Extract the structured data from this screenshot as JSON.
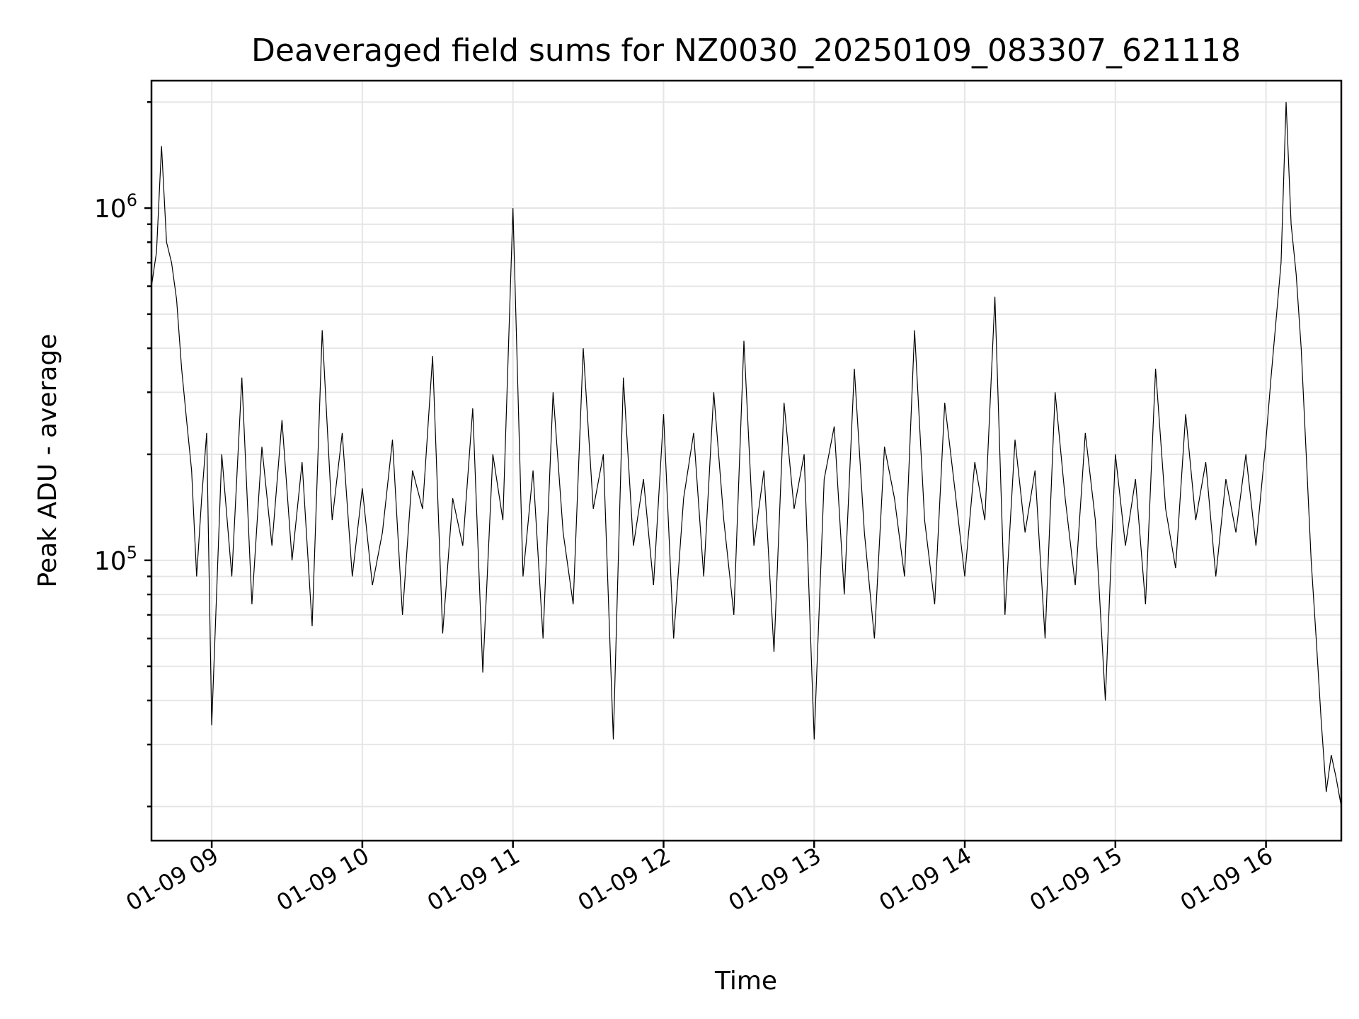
{
  "chart_data": {
    "type": "line",
    "title": "Deaveraged field sums for NZ0030_20250109_083307_621118",
    "xlabel": "Time",
    "ylabel": "Peak ADU - average",
    "yscale": "log",
    "ylim": [
      16000,
      2300000
    ],
    "xlim": [
      "2025-01-09 08:36",
      "2025-01-09 16:30"
    ],
    "grid": true,
    "xticks": [
      {
        "t": "2025-01-09 09:00",
        "label": "01-09 09"
      },
      {
        "t": "2025-01-09 10:00",
        "label": "01-09 10"
      },
      {
        "t": "2025-01-09 11:00",
        "label": "01-09 11"
      },
      {
        "t": "2025-01-09 12:00",
        "label": "01-09 12"
      },
      {
        "t": "2025-01-09 13:00",
        "label": "01-09 13"
      },
      {
        "t": "2025-01-09 14:00",
        "label": "01-09 14"
      },
      {
        "t": "2025-01-09 15:00",
        "label": "01-09 15"
      },
      {
        "t": "2025-01-09 16:00",
        "label": "01-09 16"
      }
    ],
    "yticks": [
      {
        "value": 100000,
        "base": "10",
        "exp": "5"
      },
      {
        "value": 1000000,
        "base": "10",
        "exp": "6"
      }
    ],
    "line_color": "#000000",
    "series": [
      {
        "x": [
          "2025-01-09 08:36",
          "2025-01-09 08:38",
          "2025-01-09 08:40",
          "2025-01-09 08:42",
          "2025-01-09 08:44",
          "2025-01-09 08:46",
          "2025-01-09 08:48",
          "2025-01-09 08:50",
          "2025-01-09 08:52",
          "2025-01-09 08:54",
          "2025-01-09 08:56",
          "2025-01-09 08:58",
          "2025-01-09 09:00",
          "2025-01-09 09:04",
          "2025-01-09 09:08",
          "2025-01-09 09:12",
          "2025-01-09 09:16",
          "2025-01-09 09:20",
          "2025-01-09 09:24",
          "2025-01-09 09:28",
          "2025-01-09 09:32",
          "2025-01-09 09:36",
          "2025-01-09 09:40",
          "2025-01-09 09:44",
          "2025-01-09 09:48",
          "2025-01-09 09:52",
          "2025-01-09 09:56",
          "2025-01-09 10:00",
          "2025-01-09 10:04",
          "2025-01-09 10:08",
          "2025-01-09 10:12",
          "2025-01-09 10:16",
          "2025-01-09 10:20",
          "2025-01-09 10:24",
          "2025-01-09 10:28",
          "2025-01-09 10:32",
          "2025-01-09 10:36",
          "2025-01-09 10:40",
          "2025-01-09 10:44",
          "2025-01-09 10:48",
          "2025-01-09 10:52",
          "2025-01-09 10:56",
          "2025-01-09 11:00",
          "2025-01-09 11:04",
          "2025-01-09 11:08",
          "2025-01-09 11:12",
          "2025-01-09 11:16",
          "2025-01-09 11:20",
          "2025-01-09 11:24",
          "2025-01-09 11:28",
          "2025-01-09 11:32",
          "2025-01-09 11:36",
          "2025-01-09 11:40",
          "2025-01-09 11:44",
          "2025-01-09 11:48",
          "2025-01-09 11:52",
          "2025-01-09 11:56",
          "2025-01-09 12:00",
          "2025-01-09 12:04",
          "2025-01-09 12:08",
          "2025-01-09 12:12",
          "2025-01-09 12:16",
          "2025-01-09 12:20",
          "2025-01-09 12:24",
          "2025-01-09 12:28",
          "2025-01-09 12:32",
          "2025-01-09 12:36",
          "2025-01-09 12:40",
          "2025-01-09 12:44",
          "2025-01-09 12:48",
          "2025-01-09 12:52",
          "2025-01-09 12:56",
          "2025-01-09 13:00",
          "2025-01-09 13:04",
          "2025-01-09 13:08",
          "2025-01-09 13:12",
          "2025-01-09 13:16",
          "2025-01-09 13:20",
          "2025-01-09 13:24",
          "2025-01-09 13:28",
          "2025-01-09 13:32",
          "2025-01-09 13:36",
          "2025-01-09 13:40",
          "2025-01-09 13:44",
          "2025-01-09 13:48",
          "2025-01-09 13:52",
          "2025-01-09 13:56",
          "2025-01-09 14:00",
          "2025-01-09 14:04",
          "2025-01-09 14:08",
          "2025-01-09 14:12",
          "2025-01-09 14:16",
          "2025-01-09 14:20",
          "2025-01-09 14:24",
          "2025-01-09 14:28",
          "2025-01-09 14:32",
          "2025-01-09 14:36",
          "2025-01-09 14:40",
          "2025-01-09 14:44",
          "2025-01-09 14:48",
          "2025-01-09 14:52",
          "2025-01-09 14:56",
          "2025-01-09 15:00",
          "2025-01-09 15:04",
          "2025-01-09 15:08",
          "2025-01-09 15:12",
          "2025-01-09 15:16",
          "2025-01-09 15:20",
          "2025-01-09 15:24",
          "2025-01-09 15:28",
          "2025-01-09 15:32",
          "2025-01-09 15:36",
          "2025-01-09 15:40",
          "2025-01-09 15:44",
          "2025-01-09 15:48",
          "2025-01-09 15:52",
          "2025-01-09 15:56",
          "2025-01-09 16:00",
          "2025-01-09 16:02",
          "2025-01-09 16:04",
          "2025-01-09 16:06",
          "2025-01-09 16:08",
          "2025-01-09 16:10",
          "2025-01-09 16:12",
          "2025-01-09 16:14",
          "2025-01-09 16:16",
          "2025-01-09 16:18",
          "2025-01-09 16:20",
          "2025-01-09 16:22",
          "2025-01-09 16:24",
          "2025-01-09 16:26",
          "2025-01-09 16:28",
          "2025-01-09 16:30"
        ],
        "y": [
          600000,
          750000,
          1500000,
          800000,
          700000,
          550000,
          350000,
          250000,
          180000,
          90000,
          150000,
          230000,
          34000,
          200000,
          90000,
          330000,
          75000,
          210000,
          110000,
          250000,
          100000,
          190000,
          65000,
          450000,
          130000,
          230000,
          90000,
          160000,
          85000,
          120000,
          220000,
          70000,
          180000,
          140000,
          380000,
          62000,
          150000,
          110000,
          270000,
          48000,
          200000,
          130000,
          1000000,
          90000,
          180000,
          60000,
          300000,
          120000,
          75000,
          400000,
          140000,
          200000,
          31000,
          330000,
          110000,
          170000,
          85000,
          260000,
          60000,
          150000,
          230000,
          90000,
          300000,
          130000,
          70000,
          420000,
          110000,
          180000,
          55000,
          280000,
          140000,
          200000,
          31000,
          170000,
          240000,
          80000,
          350000,
          120000,
          60000,
          210000,
          150000,
          90000,
          450000,
          130000,
          75000,
          280000,
          160000,
          90000,
          190000,
          130000,
          560000,
          70000,
          220000,
          120000,
          180000,
          60000,
          300000,
          150000,
          85000,
          230000,
          130000,
          40000,
          200000,
          110000,
          170000,
          75000,
          350000,
          140000,
          95000,
          260000,
          130000,
          190000,
          90000,
          170000,
          120000,
          200000,
          110000,
          220000,
          330000,
          480000,
          700000,
          2000000,
          900000,
          650000,
          400000,
          200000,
          100000,
          60000,
          35000,
          22000,
          28000,
          24000,
          20000
        ]
      }
    ]
  }
}
